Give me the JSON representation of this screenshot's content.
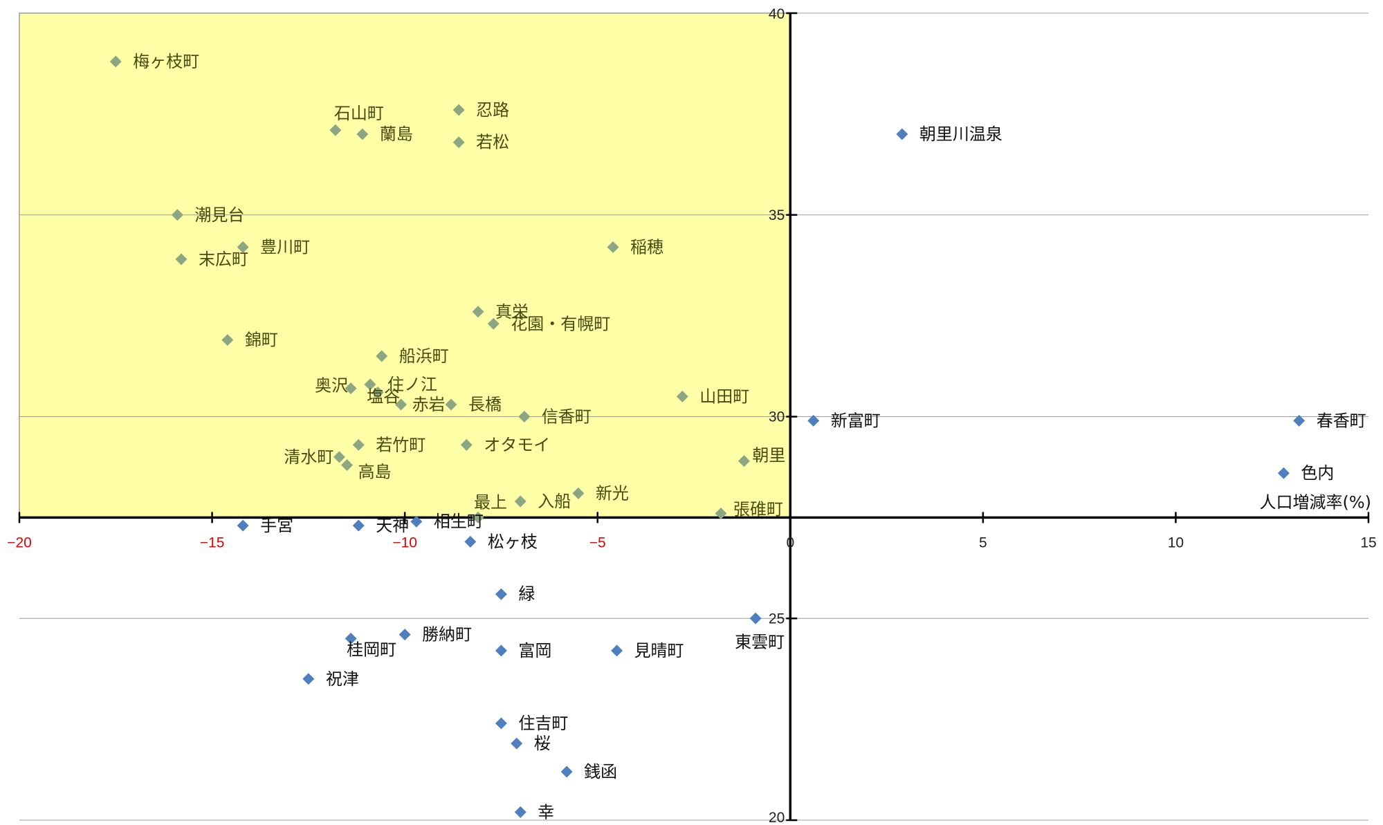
{
  "chart_data": {
    "type": "scatter",
    "xlabel": "人口増減率(%)",
    "ylabel": "",
    "xlim": [
      -20,
      15
    ],
    "ylim": [
      20,
      40
    ],
    "x_ticks": [
      -20,
      -15,
      -10,
      -5,
      0,
      5,
      10,
      15
    ],
    "y_ticks": [
      20,
      25,
      30,
      35,
      40
    ],
    "grid": true,
    "highlight_quadrant": {
      "x": [
        -20,
        0
      ],
      "y": [
        27.5,
        40
      ],
      "color": "#ffffa8"
    },
    "colors": {
      "in_highlight": "#8aa682",
      "outside": "#4f7fbf",
      "negative_tick": "#e60000"
    },
    "points": [
      {
        "label": "梅ヶ枝町",
        "x": -17.5,
        "y": 38.8
      },
      {
        "label": "石山町",
        "x": -11.8,
        "y": 37.1
      },
      {
        "label": "蘭島",
        "x": -11.1,
        "y": 37.0
      },
      {
        "label": "忍路",
        "x": -8.6,
        "y": 37.6
      },
      {
        "label": "若松",
        "x": -8.6,
        "y": 36.8
      },
      {
        "label": "朝里川温泉",
        "x": 2.9,
        "y": 37.0
      },
      {
        "label": "潮見台",
        "x": -15.9,
        "y": 35.0
      },
      {
        "label": "豊川町",
        "x": -14.2,
        "y": 34.2
      },
      {
        "label": "末広町",
        "x": -15.8,
        "y": 33.9
      },
      {
        "label": "稲穂",
        "x": -4.6,
        "y": 34.2
      },
      {
        "label": "真栄",
        "x": -8.1,
        "y": 32.6
      },
      {
        "label": "花園・有幌町",
        "x": -7.7,
        "y": 32.3
      },
      {
        "label": "錦町",
        "x": -14.6,
        "y": 31.9
      },
      {
        "label": "船浜町",
        "x": -10.6,
        "y": 31.5
      },
      {
        "label": "住ノ江",
        "x": -10.9,
        "y": 30.8
      },
      {
        "label": "奥沢",
        "x": -11.4,
        "y": 30.7
      },
      {
        "label": "塩谷",
        "x": -10.7,
        "y": 30.6
      },
      {
        "label": "赤岩",
        "x": -10.1,
        "y": 30.3
      },
      {
        "label": "長橋",
        "x": -8.8,
        "y": 30.3
      },
      {
        "label": "山田町",
        "x": -2.8,
        "y": 30.5
      },
      {
        "label": "信香町",
        "x": -6.9,
        "y": 30.0
      },
      {
        "label": "新富町",
        "x": 0.6,
        "y": 29.9
      },
      {
        "label": "春香町",
        "x": 13.2,
        "y": 29.9
      },
      {
        "label": "若竹町",
        "x": -11.2,
        "y": 29.3
      },
      {
        "label": "オタモイ",
        "x": -8.4,
        "y": 29.3
      },
      {
        "label": "清水町",
        "x": -11.7,
        "y": 29.0
      },
      {
        "label": "高島",
        "x": -11.5,
        "y": 28.8
      },
      {
        "label": "朝里",
        "x": -1.2,
        "y": 28.9
      },
      {
        "label": "色内",
        "x": 12.8,
        "y": 28.6
      },
      {
        "label": "入船",
        "x": -7.0,
        "y": 27.9
      },
      {
        "label": "新光",
        "x": -5.5,
        "y": 28.1
      },
      {
        "label": "最上",
        "x": -8.1,
        "y": 27.5
      },
      {
        "label": "張碓町",
        "x": -1.8,
        "y": 27.6
      },
      {
        "label": "手宮",
        "x": -14.2,
        "y": 27.3
      },
      {
        "label": "天神",
        "x": -11.2,
        "y": 27.3
      },
      {
        "label": "相生町",
        "x": -9.7,
        "y": 27.4
      },
      {
        "label": "松ヶ枝",
        "x": -8.3,
        "y": 26.9
      },
      {
        "label": "緑",
        "x": -7.5,
        "y": 25.6
      },
      {
        "label": "東雲町",
        "x": -0.9,
        "y": 25.0
      },
      {
        "label": "勝納町",
        "x": -10.0,
        "y": 24.6
      },
      {
        "label": "桂岡町",
        "x": -11.4,
        "y": 24.5
      },
      {
        "label": "富岡",
        "x": -7.5,
        "y": 24.2
      },
      {
        "label": "見晴町",
        "x": -4.5,
        "y": 24.2
      },
      {
        "label": "祝津",
        "x": -12.5,
        "y": 23.5
      },
      {
        "label": "住吉町",
        "x": -7.5,
        "y": 22.4
      },
      {
        "label": "桜",
        "x": -7.1,
        "y": 21.9
      },
      {
        "label": "銭函",
        "x": -5.8,
        "y": 21.2
      },
      {
        "label": "幸",
        "x": -7.0,
        "y": 20.2
      }
    ]
  }
}
